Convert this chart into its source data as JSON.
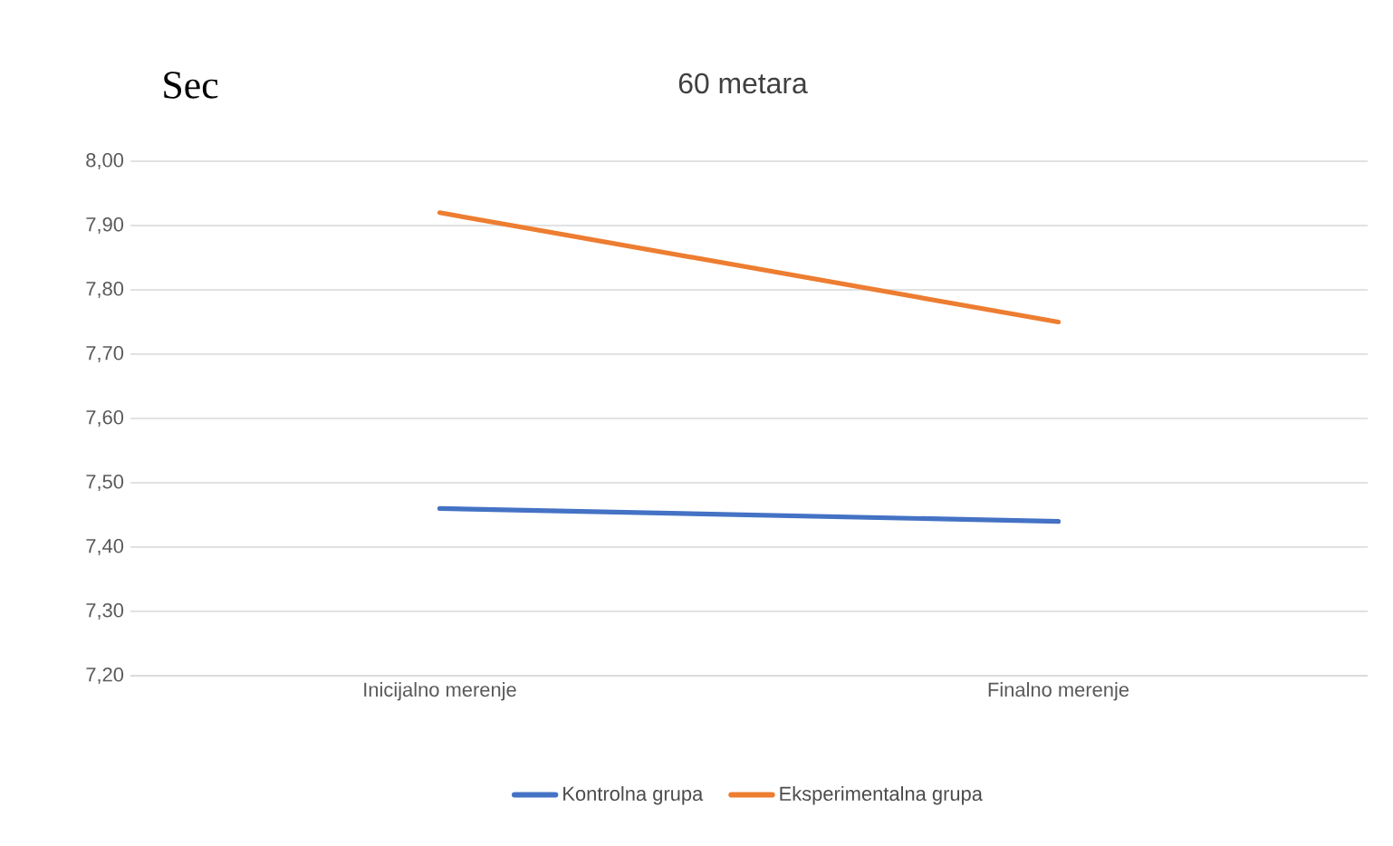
{
  "chart_data": {
    "type": "line",
    "title": "60 metara",
    "ylabel": "Sec",
    "categories": [
      "Inicijalno merenje",
      "Finalno merenje"
    ],
    "series": [
      {
        "name": "Kontrolna grupa",
        "color": "#4472c4",
        "values": [
          7.46,
          7.44
        ]
      },
      {
        "name": "Eksperimentalna grupa",
        "color": "#ed7d31",
        "values": [
          7.92,
          7.75
        ]
      }
    ],
    "ylim": [
      7.2,
      8.0
    ],
    "yticks": [
      {
        "value": 7.2,
        "label": "7,20"
      },
      {
        "value": 7.3,
        "label": "7,30"
      },
      {
        "value": 7.4,
        "label": "7,40"
      },
      {
        "value": 7.5,
        "label": "7,50"
      },
      {
        "value": 7.6,
        "label": "7,60"
      },
      {
        "value": 7.7,
        "label": "7,70"
      },
      {
        "value": 7.8,
        "label": "7,80"
      },
      {
        "value": 7.9,
        "label": "7,90"
      },
      {
        "value": 8.0,
        "label": "8,00"
      }
    ],
    "grid": "y",
    "legend": "bottom",
    "marker": "none",
    "line_style": "solid"
  }
}
